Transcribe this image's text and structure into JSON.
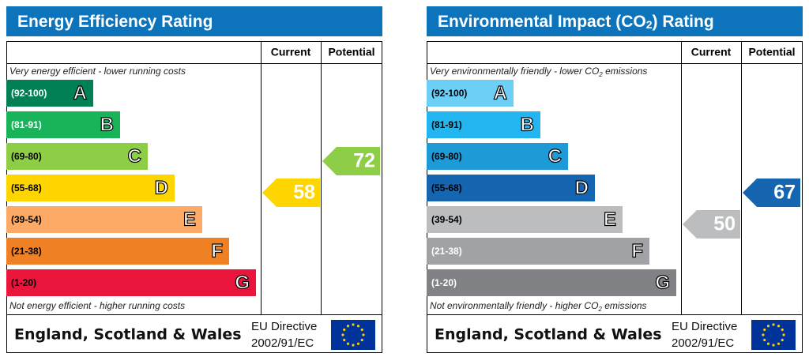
{
  "panels": [
    {
      "title": [
        "Energy Efficiency Rating"
      ],
      "columns": [
        "Current",
        "Potential"
      ],
      "top_note": [
        "Very energy efficient - lower running costs"
      ],
      "bottom_note": [
        "Not energy efficient - higher running costs"
      ],
      "bands": [
        {
          "range": "(92-100)",
          "letter": "A",
          "color": "#008054",
          "label_color": "#ffffff"
        },
        {
          "range": "(81-91)",
          "letter": "B",
          "color": "#19b459",
          "label_color": "#ffffff"
        },
        {
          "range": "(69-80)",
          "letter": "C",
          "color": "#8dce46",
          "label_color": "#000000"
        },
        {
          "range": "(55-68)",
          "letter": "D",
          "color": "#ffd500",
          "label_color": "#000000"
        },
        {
          "range": "(39-54)",
          "letter": "E",
          "color": "#fcaa65",
          "label_color": "#000000"
        },
        {
          "range": "(21-38)",
          "letter": "F",
          "color": "#ef8023",
          "label_color": "#000000"
        },
        {
          "range": "(1-20)",
          "letter": "G",
          "color": "#e9153b",
          "label_color": "#000000"
        }
      ],
      "current": "58",
      "potential": "72",
      "footer": {
        "region": "England, Scotland & Wales",
        "directive": [
          "EU Directive",
          "2002/91/EC"
        ]
      }
    },
    {
      "title": [
        "Environmental Impact (CO",
        "2",
        ") Rating"
      ],
      "columns": [
        "Current",
        "Potential"
      ],
      "top_note": [
        "Very environmentally friendly - lower CO",
        "2",
        " emissions"
      ],
      "bottom_note": [
        "Not environmentally friendly - higher CO",
        "2",
        " emissions"
      ],
      "bands": [
        {
          "range": "(92-100)",
          "letter": "A",
          "color": "#6dcff6",
          "label_color": "#000000"
        },
        {
          "range": "(81-91)",
          "letter": "B",
          "color": "#22b5f0",
          "label_color": "#000000"
        },
        {
          "range": "(69-80)",
          "letter": "C",
          "color": "#1e9bd7",
          "label_color": "#000000"
        },
        {
          "range": "(55-68)",
          "letter": "D",
          "color": "#1565b0",
          "label_color": "#000000"
        },
        {
          "range": "(39-54)",
          "letter": "E",
          "color": "#bbbdbf",
          "label_color": "#000000"
        },
        {
          "range": "(21-38)",
          "letter": "F",
          "color": "#a0a2a5",
          "label_color": "#ffffff"
        },
        {
          "range": "(1-20)",
          "letter": "G",
          "color": "#808285",
          "label_color": "#ffffff"
        }
      ],
      "current": "50",
      "potential": "67",
      "footer": {
        "region": "England, Scotland & Wales",
        "directive": [
          "EU Directive",
          "2002/91/EC"
        ]
      }
    }
  ]
}
